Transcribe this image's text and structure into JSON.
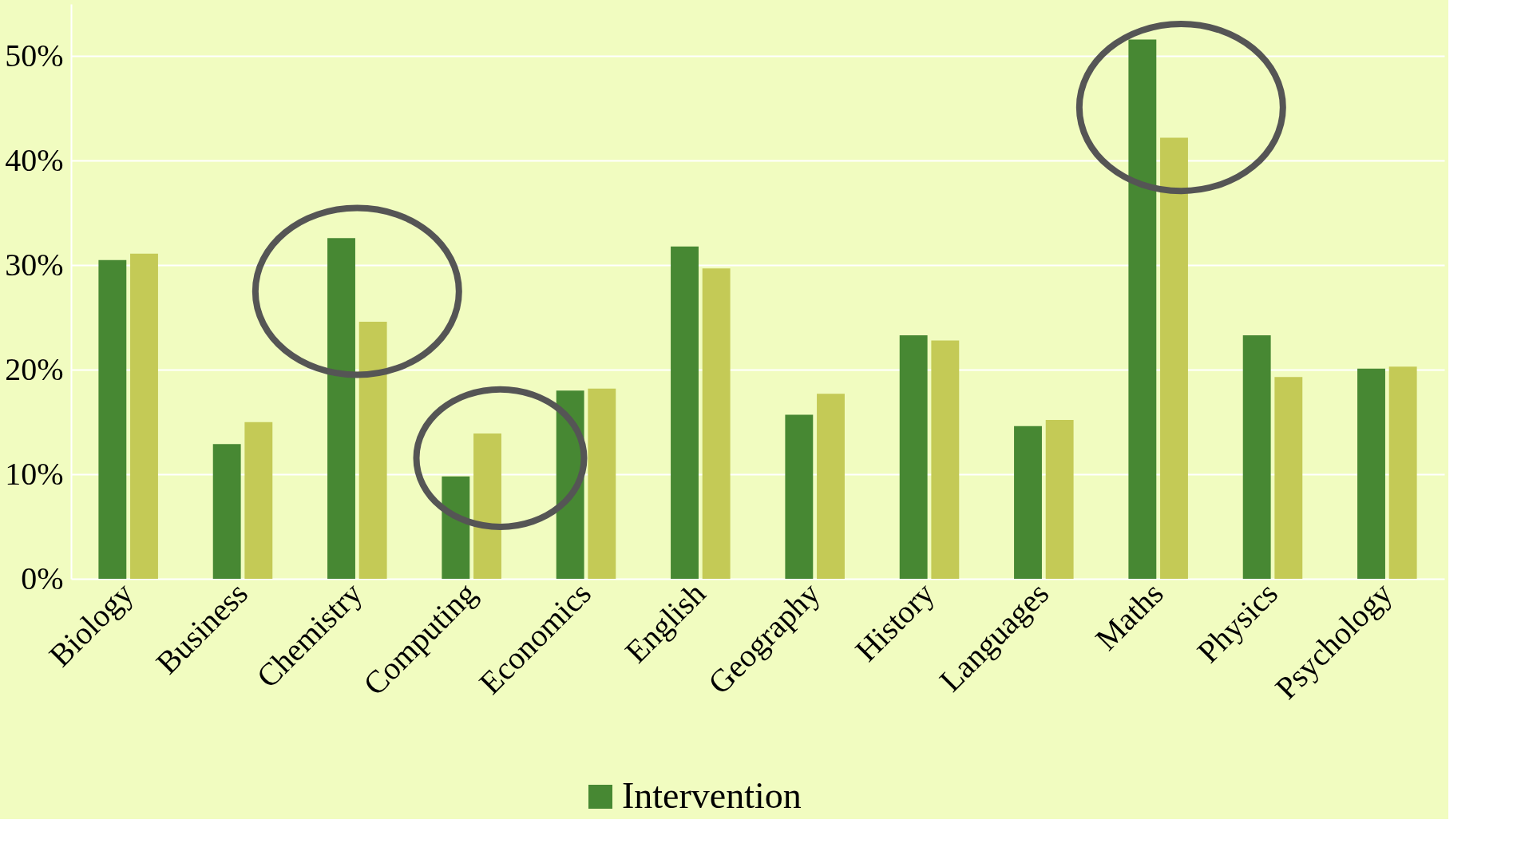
{
  "chart_data": {
    "type": "bar",
    "categories": [
      "Biology",
      "Business",
      "Chemistry",
      "Computing",
      "Economics",
      "English",
      "Geography",
      "History",
      "Languages",
      "Maths",
      "Physics",
      "Psychology"
    ],
    "series": [
      {
        "name": "Intervention",
        "color": "#478833",
        "values": [
          30.5,
          12.9,
          32.6,
          9.8,
          18.0,
          31.8,
          15.7,
          23.3,
          14.6,
          51.6,
          23.3,
          20.1
        ]
      },
      {
        "color": "#c4ca56",
        "values": [
          31.1,
          15.0,
          24.6,
          13.9,
          18.2,
          29.7,
          17.7,
          22.8,
          15.2,
          42.2,
          19.3,
          20.3
        ]
      }
    ],
    "ylim": [
      0,
      55
    ],
    "yticks": [
      {
        "value": 0,
        "label": "0%"
      },
      {
        "value": 10,
        "label": "10%"
      },
      {
        "value": 20,
        "label": "20%"
      },
      {
        "value": 30,
        "label": "30%"
      },
      {
        "value": 40,
        "label": "40%"
      },
      {
        "value": 50,
        "label": "50%"
      }
    ],
    "grid": "y",
    "legend": "bottom"
  }
}
